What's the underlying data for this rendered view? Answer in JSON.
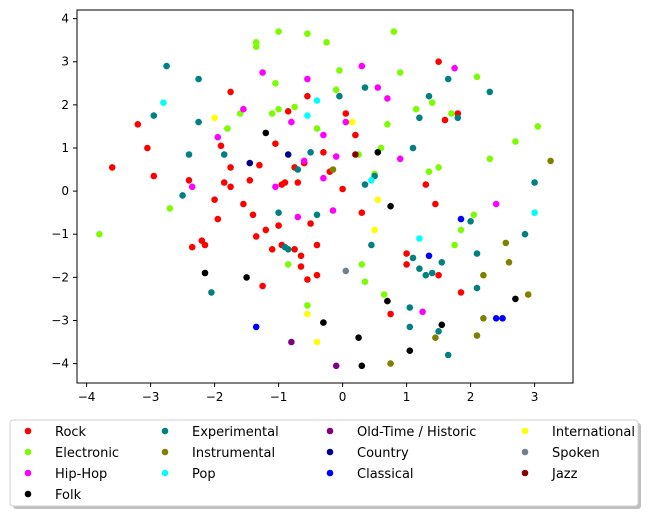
{
  "chart_data": {
    "type": "scatter",
    "title": "",
    "xlabel": "",
    "ylabel": "",
    "xlim": [
      -4.15,
      3.6
    ],
    "ylim": [
      -4.45,
      4.2
    ],
    "xticks": [
      -4,
      -3,
      -2,
      -1,
      0,
      1,
      2,
      3
    ],
    "yticks": [
      -4,
      -3,
      -2,
      -1,
      0,
      1,
      2,
      3,
      4
    ],
    "grid": false,
    "legend": {
      "placement": "bottom",
      "columns": 4,
      "shadow": true
    },
    "series": [
      {
        "name": "Rock",
        "color": "#ff0000",
        "points": [
          [
            -3.6,
            0.55
          ],
          [
            -3.05,
            1.0
          ],
          [
            -2.95,
            0.35
          ],
          [
            -3.2,
            1.55
          ],
          [
            -2.4,
            0.25
          ],
          [
            -2.35,
            -1.3
          ],
          [
            -2.2,
            -1.15
          ],
          [
            -2.15,
            -1.25
          ],
          [
            -2.0,
            -0.2
          ],
          [
            -1.95,
            -0.65
          ],
          [
            -1.9,
            1.05
          ],
          [
            -1.85,
            0.2
          ],
          [
            -1.75,
            0.1
          ],
          [
            -1.75,
            0.55
          ],
          [
            -1.75,
            2.3
          ],
          [
            -1.55,
            -0.3
          ],
          [
            -1.45,
            0.25
          ],
          [
            -1.4,
            -0.55
          ],
          [
            -1.35,
            -1.05
          ],
          [
            -1.3,
            0.6
          ],
          [
            -1.25,
            -2.2
          ],
          [
            -1.2,
            -0.9
          ],
          [
            -1.1,
            -1.35
          ],
          [
            -1.05,
            1.1
          ],
          [
            -1.0,
            -0.8
          ],
          [
            -0.95,
            -1.25
          ],
          [
            -0.95,
            0.15
          ],
          [
            -0.9,
            0.2
          ],
          [
            -0.85,
            1.85
          ],
          [
            -0.75,
            -1.35
          ],
          [
            -0.75,
            0.55
          ],
          [
            -0.7,
            0.2
          ],
          [
            -0.65,
            -1.5
          ],
          [
            -0.65,
            -1.75
          ],
          [
            -0.6,
            0.65
          ],
          [
            -0.55,
            -2.05
          ],
          [
            -0.55,
            2.2
          ],
          [
            -0.5,
            -0.75
          ],
          [
            -0.4,
            -1.95
          ],
          [
            -0.4,
            -1.25
          ],
          [
            -0.3,
            0.9
          ],
          [
            -0.2,
            0.45
          ],
          [
            0.0,
            0.05
          ],
          [
            0.05,
            1.8
          ],
          [
            0.2,
            1.3
          ],
          [
            0.3,
            -0.5
          ],
          [
            0.75,
            -2.85
          ],
          [
            1.0,
            -1.45
          ],
          [
            1.0,
            -1.7
          ],
          [
            1.3,
            0.15
          ],
          [
            1.45,
            -0.3
          ],
          [
            1.5,
            3.0
          ],
          [
            1.5,
            -1.95
          ],
          [
            1.6,
            1.65
          ],
          [
            1.8,
            1.8
          ],
          [
            1.85,
            -2.35
          ]
        ]
      },
      {
        "name": "Electronic",
        "color": "#7cfc00",
        "points": [
          [
            -3.8,
            -1.0
          ],
          [
            -2.7,
            -0.4
          ],
          [
            -1.8,
            1.45
          ],
          [
            -1.6,
            1.8
          ],
          [
            -1.35,
            3.45
          ],
          [
            -1.35,
            3.35
          ],
          [
            -1.1,
            1.8
          ],
          [
            -1.05,
            2.5
          ],
          [
            -1.0,
            1.9
          ],
          [
            -1.0,
            3.7
          ],
          [
            -0.85,
            -1.7
          ],
          [
            -0.75,
            1.95
          ],
          [
            -0.55,
            3.65
          ],
          [
            -0.55,
            -2.65
          ],
          [
            -0.4,
            1.45
          ],
          [
            -0.25,
            3.45
          ],
          [
            -0.1,
            2.35
          ],
          [
            -0.05,
            2.8
          ],
          [
            0.25,
            0.85
          ],
          [
            0.3,
            -1.7
          ],
          [
            0.35,
            -2.1
          ],
          [
            0.5,
            0.4
          ],
          [
            0.6,
            1.0
          ],
          [
            0.65,
            -2.4
          ],
          [
            0.7,
            1.55
          ],
          [
            0.8,
            3.7
          ],
          [
            0.9,
            2.75
          ],
          [
            1.15,
            1.9
          ],
          [
            1.35,
            0.45
          ],
          [
            1.4,
            2.05
          ],
          [
            1.5,
            0.55
          ],
          [
            1.7,
            1.8
          ],
          [
            1.75,
            -1.25
          ],
          [
            1.85,
            -0.9
          ],
          [
            2.05,
            -0.55
          ],
          [
            2.1,
            2.65
          ],
          [
            2.3,
            0.75
          ],
          [
            2.7,
            1.15
          ],
          [
            3.05,
            1.5
          ]
        ]
      },
      {
        "name": "Hip-Hop",
        "color": "#ff00ff",
        "points": [
          [
            -2.35,
            0.1
          ],
          [
            -1.95,
            1.25
          ],
          [
            -1.55,
            1.9
          ],
          [
            -1.25,
            2.75
          ],
          [
            -1.05,
            0.1
          ],
          [
            -0.8,
            1.6
          ],
          [
            -0.7,
            -0.6
          ],
          [
            -0.6,
            0.7
          ],
          [
            -0.55,
            2.6
          ],
          [
            -0.3,
            1.3
          ],
          [
            -0.3,
            0.3
          ],
          [
            -0.15,
            -0.45
          ],
          [
            -0.1,
            0.8
          ],
          [
            0.05,
            1.6
          ],
          [
            0.3,
            2.9
          ],
          [
            0.55,
            2.4
          ],
          [
            0.7,
            2.15
          ],
          [
            0.9,
            0.75
          ],
          [
            1.25,
            -2.8
          ],
          [
            1.75,
            2.85
          ],
          [
            2.4,
            -0.3
          ]
        ]
      },
      {
        "name": "Folk",
        "color": "#000000",
        "points": [
          [
            -2.15,
            -1.9
          ],
          [
            -1.5,
            -2.0
          ],
          [
            -1.2,
            1.35
          ],
          [
            -0.3,
            -3.05
          ],
          [
            0.25,
            -3.4
          ],
          [
            0.3,
            -4.05
          ],
          [
            0.55,
            0.9
          ],
          [
            0.7,
            -2.55
          ],
          [
            0.75,
            -0.35
          ],
          [
            1.05,
            -3.7
          ],
          [
            1.55,
            -3.1
          ],
          [
            2.7,
            -2.5
          ]
        ]
      },
      {
        "name": "Experimental",
        "color": "#008080",
        "points": [
          [
            -2.75,
            2.9
          ],
          [
            -2.95,
            1.75
          ],
          [
            -2.5,
            -0.1
          ],
          [
            -2.4,
            0.85
          ],
          [
            -2.25,
            2.6
          ],
          [
            -2.25,
            1.6
          ],
          [
            -2.05,
            -2.35
          ],
          [
            -1.85,
            0.85
          ],
          [
            -1.0,
            -0.5
          ],
          [
            -0.9,
            -1.3
          ],
          [
            -0.85,
            -1.35
          ],
          [
            -0.7,
            0.5
          ],
          [
            -0.5,
            0.9
          ],
          [
            -0.4,
            -0.55
          ],
          [
            -0.05,
            2.2
          ],
          [
            0.35,
            2.4
          ],
          [
            0.35,
            0.15
          ],
          [
            0.45,
            -1.25
          ],
          [
            0.5,
            0.35
          ],
          [
            1.05,
            -2.7
          ],
          [
            1.05,
            -3.15
          ],
          [
            1.1,
            -1.55
          ],
          [
            1.1,
            1.0
          ],
          [
            1.2,
            1.7
          ],
          [
            1.2,
            -1.8
          ],
          [
            1.3,
            -1.95
          ],
          [
            1.35,
            2.2
          ],
          [
            1.4,
            -1.9
          ],
          [
            1.5,
            -3.25
          ],
          [
            1.55,
            -1.65
          ],
          [
            1.65,
            2.6
          ],
          [
            1.65,
            -3.8
          ],
          [
            1.8,
            1.7
          ],
          [
            2.0,
            -0.7
          ],
          [
            2.1,
            -1.45
          ],
          [
            2.1,
            -2.25
          ],
          [
            2.3,
            2.3
          ],
          [
            2.85,
            -1.0
          ],
          [
            3.0,
            0.2
          ]
        ]
      },
      {
        "name": "Instrumental",
        "color": "#808000",
        "points": [
          [
            -0.15,
            0.5
          ],
          [
            0.75,
            -4.0
          ],
          [
            1.45,
            -3.4
          ],
          [
            2.1,
            -3.35
          ],
          [
            2.2,
            -2.95
          ],
          [
            2.2,
            -1.95
          ],
          [
            2.55,
            -1.2
          ],
          [
            2.6,
            -1.65
          ],
          [
            2.9,
            -2.4
          ],
          [
            3.25,
            0.7
          ]
        ]
      },
      {
        "name": "Pop",
        "color": "#00ffff",
        "points": [
          [
            -2.8,
            2.05
          ],
          [
            -0.55,
            1.75
          ],
          [
            -0.4,
            2.1
          ],
          [
            0.45,
            0.25
          ],
          [
            1.2,
            -1.1
          ],
          [
            3.0,
            -0.5
          ]
        ]
      },
      {
        "name": "Old-Time / Historic",
        "color": "#800080",
        "points": [
          [
            -0.8,
            -3.5
          ],
          [
            -0.1,
            -4.05
          ]
        ]
      },
      {
        "name": "Country",
        "color": "#00008b",
        "points": [
          [
            -1.45,
            0.65
          ],
          [
            -0.85,
            0.85
          ]
        ]
      },
      {
        "name": "Classical",
        "color": "#0000ff",
        "points": [
          [
            -1.35,
            -3.15
          ],
          [
            1.35,
            -1.5
          ],
          [
            1.85,
            -0.65
          ],
          [
            2.4,
            -2.95
          ],
          [
            2.5,
            -2.95
          ]
        ]
      },
      {
        "name": "International",
        "color": "#ffff00",
        "points": [
          [
            -2.0,
            1.7
          ],
          [
            -0.55,
            -2.85
          ],
          [
            -0.4,
            -3.5
          ],
          [
            0.15,
            1.6
          ],
          [
            0.5,
            -0.9
          ],
          [
            0.55,
            -0.2
          ]
        ]
      },
      {
        "name": "Spoken",
        "color": "#708090",
        "points": [
          [
            0.05,
            -1.85
          ]
        ]
      },
      {
        "name": "Jazz",
        "color": "#8b0000",
        "points": [
          [
            0.2,
            0.85
          ]
        ]
      }
    ]
  }
}
